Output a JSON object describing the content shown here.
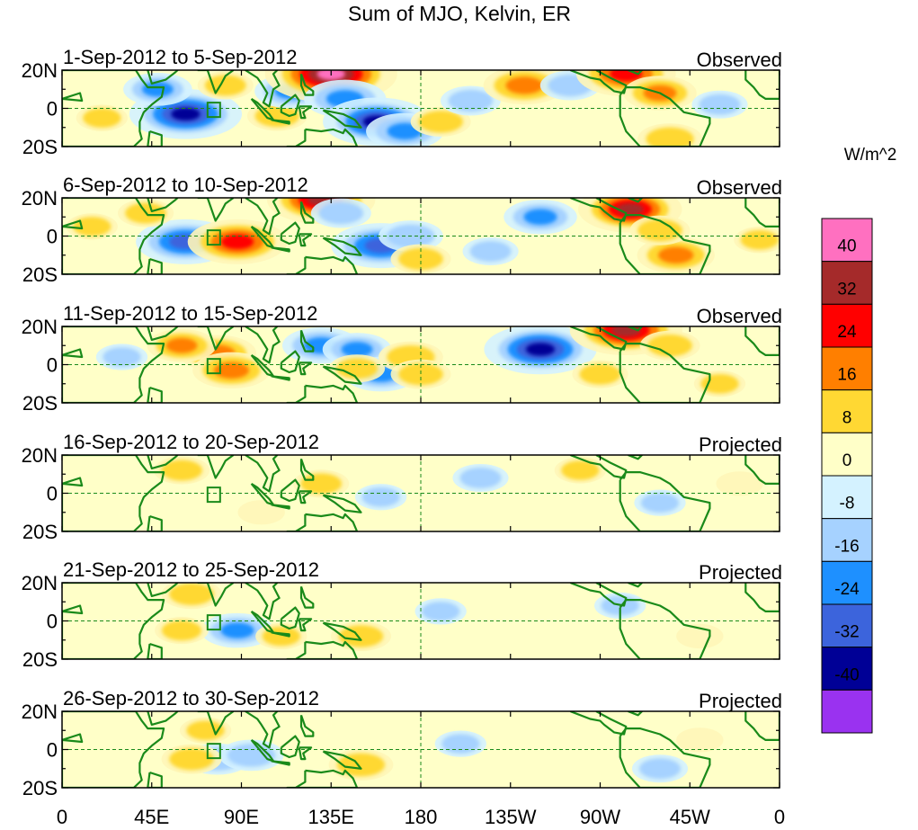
{
  "chart_data": {
    "type": "heatmap",
    "title": "Sum of MJO, Kelvin, ER",
    "colorbar_label": "W/m^2",
    "colorbar_ticks": [
      "40",
      "32",
      "24",
      "16",
      "8",
      "0",
      "-8",
      "-16",
      "-24",
      "-32",
      "-40"
    ],
    "colorbar_colors": [
      "#ff70c0",
      "#a52a2a",
      "#ff0000",
      "#ff7f00",
      "#ffd833",
      "#ffffc8",
      "#d4f2ff",
      "#a6d2ff",
      "#1e90ff",
      "#3c64dc",
      "#000096",
      "#9a32f0"
    ],
    "x_ticks": [
      "0",
      "45E",
      "90E",
      "135E",
      "180",
      "135W",
      "90W",
      "45W",
      "0"
    ],
    "y_ticks": [
      "20N",
      "0",
      "20S"
    ],
    "lon_range": [
      0,
      360
    ],
    "lat_range": [
      -20,
      20
    ],
    "panels": [
      {
        "period": "1-Sep-2012 to 5-Sep-2012",
        "label": "Observed",
        "blobs": [
          {
            "lon": 62,
            "lat": -3,
            "value": -36
          },
          {
            "lon": 48,
            "lat": 10,
            "value": -16
          },
          {
            "lon": 82,
            "lat": 12,
            "value": 10
          },
          {
            "lon": 108,
            "lat": -4,
            "value": 12
          },
          {
            "lon": 115,
            "lat": 9,
            "value": -18
          },
          {
            "lon": 135,
            "lat": 18,
            "value": 45
          },
          {
            "lon": 142,
            "lat": 5,
            "value": -22
          },
          {
            "lon": 158,
            "lat": -7,
            "value": -34
          },
          {
            "lon": 172,
            "lat": -12,
            "value": -20
          },
          {
            "lon": 190,
            "lat": -7,
            "value": 12
          },
          {
            "lon": 205,
            "lat": 4,
            "value": -12
          },
          {
            "lon": 232,
            "lat": 12,
            "value": 22
          },
          {
            "lon": 255,
            "lat": 12,
            "value": -12
          },
          {
            "lon": 283,
            "lat": 18,
            "value": 30
          },
          {
            "lon": 300,
            "lat": 8,
            "value": 18
          },
          {
            "lon": 305,
            "lat": -16,
            "value": 14
          },
          {
            "lon": 20,
            "lat": -5,
            "value": 8
          },
          {
            "lon": 330,
            "lat": 2,
            "value": -10
          }
        ]
      },
      {
        "period": "6-Sep-2012 to 10-Sep-2012",
        "label": "Observed",
        "blobs": [
          {
            "lon": 62,
            "lat": -3,
            "value": -30
          },
          {
            "lon": 88,
            "lat": -3,
            "value": 30
          },
          {
            "lon": 42,
            "lat": 12,
            "value": 10
          },
          {
            "lon": 130,
            "lat": 19,
            "value": 34
          },
          {
            "lon": 140,
            "lat": 12,
            "value": -12
          },
          {
            "lon": 160,
            "lat": -5,
            "value": -30
          },
          {
            "lon": 175,
            "lat": 0,
            "value": -14
          },
          {
            "lon": 180,
            "lat": -12,
            "value": 12
          },
          {
            "lon": 240,
            "lat": 10,
            "value": -18
          },
          {
            "lon": 285,
            "lat": 14,
            "value": 32
          },
          {
            "lon": 308,
            "lat": -10,
            "value": 20
          },
          {
            "lon": 300,
            "lat": 3,
            "value": 12
          },
          {
            "lon": 15,
            "lat": 5,
            "value": 8
          },
          {
            "lon": 215,
            "lat": -8,
            "value": -10
          },
          {
            "lon": 350,
            "lat": -2,
            "value": 8
          }
        ]
      },
      {
        "period": "11-Sep-2012 to 15-Sep-2012",
        "label": "Observed",
        "blobs": [
          {
            "lon": 78,
            "lat": 6,
            "value": 20
          },
          {
            "lon": 60,
            "lat": 10,
            "value": 16
          },
          {
            "lon": 85,
            "lat": -3,
            "value": 20
          },
          {
            "lon": 130,
            "lat": 10,
            "value": -20
          },
          {
            "lon": 148,
            "lat": 8,
            "value": -16
          },
          {
            "lon": 160,
            "lat": -5,
            "value": -18
          },
          {
            "lon": 148,
            "lat": -2,
            "value": 10
          },
          {
            "lon": 175,
            "lat": 4,
            "value": 14
          },
          {
            "lon": 180,
            "lat": -5,
            "value": 12
          },
          {
            "lon": 240,
            "lat": 8,
            "value": -36
          },
          {
            "lon": 283,
            "lat": 18,
            "value": 36
          },
          {
            "lon": 270,
            "lat": -5,
            "value": 10
          },
          {
            "lon": 305,
            "lat": 10,
            "value": 12
          },
          {
            "lon": 30,
            "lat": 4,
            "value": -8
          },
          {
            "lon": 330,
            "lat": -10,
            "value": 8
          }
        ]
      },
      {
        "period": "16-Sep-2012 to 20-Sep-2012",
        "label": "Projected",
        "blobs": [
          {
            "lon": 60,
            "lat": 12,
            "value": 10
          },
          {
            "lon": 130,
            "lat": 5,
            "value": 10
          },
          {
            "lon": 160,
            "lat": -2,
            "value": -8
          },
          {
            "lon": 210,
            "lat": 8,
            "value": -10
          },
          {
            "lon": 260,
            "lat": 12,
            "value": 8
          },
          {
            "lon": 300,
            "lat": -5,
            "value": -8
          },
          {
            "lon": 100,
            "lat": -10,
            "value": 6
          },
          {
            "lon": 340,
            "lat": 5,
            "value": 6
          }
        ]
      },
      {
        "period": "21-Sep-2012 to 25-Sep-2012",
        "label": "Projected",
        "blobs": [
          {
            "lon": 65,
            "lat": 14,
            "value": 12
          },
          {
            "lon": 88,
            "lat": -5,
            "value": -18
          },
          {
            "lon": 110,
            "lat": -8,
            "value": 8
          },
          {
            "lon": 150,
            "lat": -8,
            "value": 12
          },
          {
            "lon": 60,
            "lat": -5,
            "value": 9
          },
          {
            "lon": 190,
            "lat": 5,
            "value": -8
          },
          {
            "lon": 280,
            "lat": 8,
            "value": -8
          },
          {
            "lon": 320,
            "lat": -8,
            "value": 6
          }
        ]
      },
      {
        "period": "26-Sep-2012 to 30-Sep-2012",
        "label": "Projected",
        "blobs": [
          {
            "lon": 72,
            "lat": 10,
            "value": 8
          },
          {
            "lon": 78,
            "lat": -5,
            "value": -14
          },
          {
            "lon": 95,
            "lat": -3,
            "value": -14
          },
          {
            "lon": 150,
            "lat": -8,
            "value": 14
          },
          {
            "lon": 65,
            "lat": -5,
            "value": 12
          },
          {
            "lon": 200,
            "lat": 3,
            "value": -8
          },
          {
            "lon": 300,
            "lat": -10,
            "value": -10
          },
          {
            "lon": 320,
            "lat": 5,
            "value": 6
          }
        ]
      }
    ]
  }
}
